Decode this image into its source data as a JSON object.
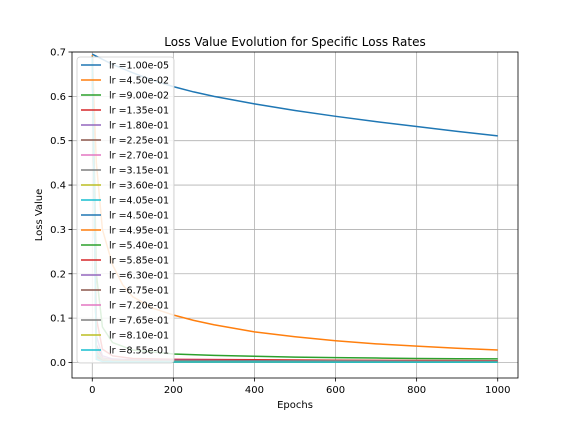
{
  "chart_data": {
    "type": "line",
    "title": "Loss Value Evolution for Specific Loss Rates",
    "xlabel": "Epochs",
    "ylabel": "Loss Value",
    "xlim": [
      -50,
      1050
    ],
    "ylim": [
      -0.035,
      0.7
    ],
    "xticks": [
      0,
      200,
      400,
      600,
      800,
      1000
    ],
    "yticks": [
      0.0,
      0.1,
      0.2,
      0.3,
      0.4,
      0.5,
      0.6,
      0.7
    ],
    "xtick_labels": [
      "0",
      "200",
      "400",
      "600",
      "800",
      "1000"
    ],
    "ytick_labels": [
      "0.0",
      "0.1",
      "0.2",
      "0.3",
      "0.4",
      "0.5",
      "0.6",
      "0.7"
    ],
    "grid": true,
    "legend_position": "upper-left",
    "series": [
      {
        "name": "lr =1.00e-05",
        "color": "#1f77b4",
        "x": [
          0,
          50,
          100,
          150,
          200,
          250,
          300,
          400,
          500,
          600,
          700,
          800,
          900,
          1000
        ],
        "y": [
          0.695,
          0.672,
          0.653,
          0.636,
          0.622,
          0.61,
          0.6,
          0.583,
          0.568,
          0.555,
          0.543,
          0.532,
          0.521,
          0.511
        ]
      },
      {
        "name": "lr =4.50e-02",
        "color": "#ff7f0e",
        "x": [
          0,
          10,
          25,
          50,
          75,
          100,
          150,
          200,
          250,
          300,
          400,
          500,
          600,
          700,
          800,
          900,
          1000
        ],
        "y": [
          0.693,
          0.45,
          0.3,
          0.22,
          0.175,
          0.148,
          0.122,
          0.107,
          0.095,
          0.085,
          0.069,
          0.058,
          0.049,
          0.042,
          0.037,
          0.032,
          0.028
        ]
      },
      {
        "name": "lr =9.00e-02",
        "color": "#2ca02c",
        "x": [
          0,
          10,
          25,
          50,
          100,
          200,
          300,
          400,
          500,
          600,
          700,
          800,
          900,
          1000
        ],
        "y": [
          0.69,
          0.2,
          0.08,
          0.045,
          0.028,
          0.019,
          0.016,
          0.014,
          0.012,
          0.011,
          0.01,
          0.009,
          0.0085,
          0.008
        ]
      },
      {
        "name": "lr =1.35e-01",
        "color": "#d62728",
        "x": [
          0,
          10,
          25,
          50,
          100,
          200,
          400,
          600,
          800,
          1000
        ],
        "y": [
          0.69,
          0.1,
          0.03,
          0.015,
          0.009,
          0.007,
          0.006,
          0.005,
          0.0045,
          0.004
        ]
      },
      {
        "name": "lr =1.80e-01",
        "color": "#9467bd",
        "x": [
          0,
          10,
          25,
          50,
          100,
          200,
          400,
          600,
          800,
          1000
        ],
        "y": [
          0.69,
          0.06,
          0.015,
          0.008,
          0.006,
          0.005,
          0.004,
          0.0035,
          0.003,
          0.003
        ]
      },
      {
        "name": "lr =2.25e-01",
        "color": "#8c564b",
        "x": [
          0,
          10,
          25,
          50,
          100,
          200,
          400,
          600,
          800,
          1000
        ],
        "y": [
          0.69,
          0.04,
          0.01,
          0.006,
          0.005,
          0.004,
          0.0035,
          0.003,
          0.0028,
          0.0025
        ]
      },
      {
        "name": "lr =2.70e-01",
        "color": "#e377c2",
        "x": [
          0,
          10,
          25,
          50,
          100,
          200,
          400,
          600,
          800,
          1000
        ],
        "y": [
          0.69,
          0.03,
          0.008,
          0.005,
          0.004,
          0.0035,
          0.003,
          0.0027,
          0.0024,
          0.0022
        ]
      },
      {
        "name": "lr =3.15e-01",
        "color": "#7f7f7f",
        "x": [
          0,
          10,
          25,
          50,
          100,
          200,
          400,
          600,
          800,
          1000
        ],
        "y": [
          0.69,
          0.025,
          0.007,
          0.004,
          0.0035,
          0.003,
          0.0026,
          0.0023,
          0.0021,
          0.002
        ]
      },
      {
        "name": "lr =3.60e-01",
        "color": "#bcbd22",
        "x": [
          0,
          10,
          25,
          50,
          100,
          200,
          400,
          600,
          800,
          1000
        ],
        "y": [
          0.69,
          0.02,
          0.006,
          0.0035,
          0.003,
          0.0027,
          0.0023,
          0.0021,
          0.0019,
          0.0018
        ]
      },
      {
        "name": "lr =4.05e-01",
        "color": "#17becf",
        "x": [
          0,
          10,
          25,
          50,
          100,
          200,
          400,
          600,
          800,
          1000
        ],
        "y": [
          0.69,
          0.018,
          0.005,
          0.003,
          0.0027,
          0.0024,
          0.0021,
          0.0019,
          0.0017,
          0.0016
        ]
      },
      {
        "name": "lr =4.50e-01",
        "color": "#1f77b4",
        "x": [
          0,
          10,
          25,
          50,
          100,
          200,
          400,
          600,
          800,
          1000
        ],
        "y": [
          0.69,
          0.015,
          0.0045,
          0.0028,
          0.0024,
          0.0021,
          0.0019,
          0.0017,
          0.0016,
          0.0015
        ]
      },
      {
        "name": "lr =4.95e-01",
        "color": "#ff7f0e",
        "x": [
          0,
          10,
          25,
          50,
          100,
          200,
          400,
          600,
          800,
          1000
        ],
        "y": [
          0.69,
          0.013,
          0.004,
          0.0026,
          0.0022,
          0.0019,
          0.0017,
          0.0016,
          0.0014,
          0.0013
        ]
      },
      {
        "name": "lr =5.40e-01",
        "color": "#2ca02c",
        "x": [
          0,
          10,
          25,
          50,
          100,
          200,
          400,
          600,
          800,
          1000
        ],
        "y": [
          0.69,
          0.012,
          0.0036,
          0.0024,
          0.002,
          0.0018,
          0.0016,
          0.0014,
          0.0013,
          0.0012
        ]
      },
      {
        "name": "lr =5.85e-01",
        "color": "#d62728",
        "x": [
          0,
          10,
          25,
          50,
          100,
          200,
          400,
          600,
          800,
          1000
        ],
        "y": [
          0.69,
          0.011,
          0.0033,
          0.0022,
          0.0019,
          0.0017,
          0.0015,
          0.0013,
          0.0012,
          0.0011
        ]
      },
      {
        "name": "lr =6.30e-01",
        "color": "#9467bd",
        "x": [
          0,
          10,
          25,
          50,
          100,
          200,
          400,
          600,
          800,
          1000
        ],
        "y": [
          0.69,
          0.01,
          0.003,
          0.002,
          0.0018,
          0.0016,
          0.0014,
          0.0012,
          0.0011,
          0.001
        ]
      },
      {
        "name": "lr =6.75e-01",
        "color": "#8c564b",
        "x": [
          0,
          10,
          25,
          50,
          100,
          200,
          400,
          600,
          800,
          1000
        ],
        "y": [
          0.69,
          0.009,
          0.0028,
          0.0019,
          0.0017,
          0.0015,
          0.0013,
          0.0011,
          0.001,
          0.001
        ]
      },
      {
        "name": "lr =7.20e-01",
        "color": "#e377c2",
        "x": [
          0,
          10,
          25,
          50,
          100,
          200,
          400,
          600,
          800,
          1000
        ],
        "y": [
          0.69,
          0.0085,
          0.0026,
          0.0018,
          0.0016,
          0.0014,
          0.0012,
          0.001,
          0.001,
          0.0009
        ]
      },
      {
        "name": "lr =7.65e-01",
        "color": "#7f7f7f",
        "x": [
          0,
          10,
          25,
          50,
          100,
          200,
          400,
          600,
          800,
          1000
        ],
        "y": [
          0.69,
          0.008,
          0.0024,
          0.0017,
          0.0015,
          0.0013,
          0.0011,
          0.001,
          0.0009,
          0.0009
        ]
      },
      {
        "name": "lr =8.10e-01",
        "color": "#bcbd22",
        "x": [
          0,
          10,
          25,
          50,
          100,
          200,
          400,
          600,
          800,
          1000
        ],
        "y": [
          0.69,
          0.0075,
          0.0023,
          0.0016,
          0.0014,
          0.0012,
          0.001,
          0.0009,
          0.0009,
          0.0008
        ]
      },
      {
        "name": "lr =8.55e-01",
        "color": "#17becf",
        "x": [
          0,
          10,
          25,
          50,
          100,
          200,
          400,
          600,
          800,
          1000
        ],
        "y": [
          0.69,
          0.007,
          0.0022,
          0.0015,
          0.0013,
          0.0011,
          0.001,
          0.0009,
          0.0008,
          0.0008
        ]
      }
    ]
  }
}
